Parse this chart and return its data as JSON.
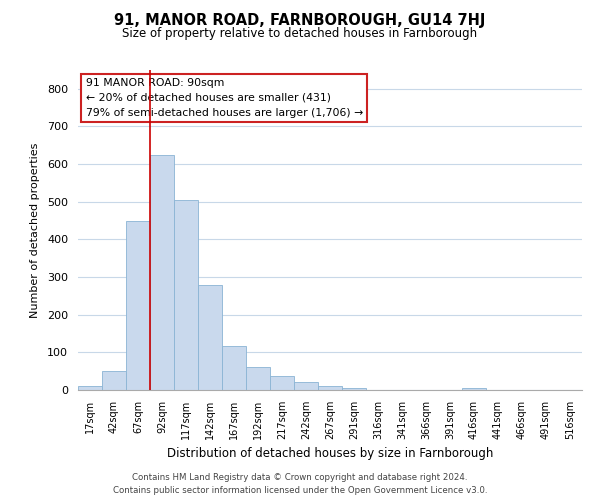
{
  "title": "91, MANOR ROAD, FARNBOROUGH, GU14 7HJ",
  "subtitle": "Size of property relative to detached houses in Farnborough",
  "xlabel": "Distribution of detached houses by size in Farnborough",
  "ylabel": "Number of detached properties",
  "bar_labels": [
    "17sqm",
    "42sqm",
    "67sqm",
    "92sqm",
    "117sqm",
    "142sqm",
    "167sqm",
    "192sqm",
    "217sqm",
    "242sqm",
    "267sqm",
    "291sqm",
    "316sqm",
    "341sqm",
    "366sqm",
    "391sqm",
    "416sqm",
    "441sqm",
    "466sqm",
    "491sqm",
    "516sqm"
  ],
  "bar_values": [
    10,
    50,
    450,
    625,
    505,
    280,
    118,
    60,
    38,
    22,
    10,
    5,
    0,
    0,
    0,
    0,
    5,
    0,
    0,
    0,
    0
  ],
  "bar_color": "#c9d9ed",
  "bar_edge_color": "#8ab4d4",
  "vline_color": "#cc0000",
  "ylim": [
    0,
    850
  ],
  "yticks": [
    0,
    100,
    200,
    300,
    400,
    500,
    600,
    700,
    800
  ],
  "annotation_title": "91 MANOR ROAD: 90sqm",
  "annotation_line1": "← 20% of detached houses are smaller (431)",
  "annotation_line2": "79% of semi-detached houses are larger (1,706) →",
  "footer_line1": "Contains HM Land Registry data © Crown copyright and database right 2024.",
  "footer_line2": "Contains public sector information licensed under the Open Government Licence v3.0.",
  "bg_color": "#ffffff",
  "grid_color": "#c8d8e8"
}
